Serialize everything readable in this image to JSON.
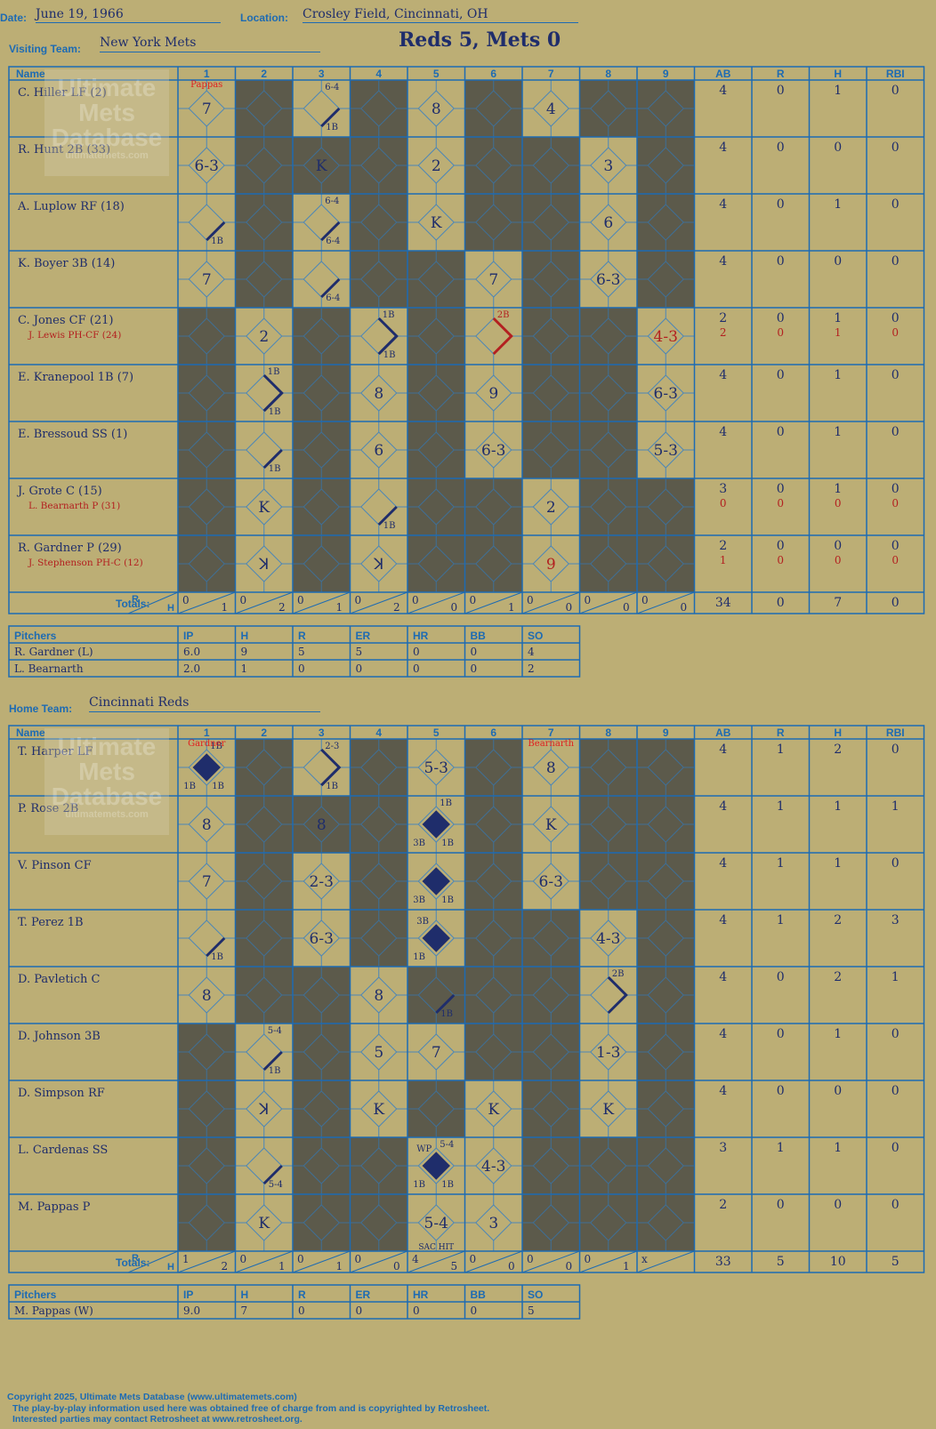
{
  "header": {
    "date_label": "Date:",
    "date": "June 19, 1966",
    "location_label": "Location:",
    "location": "Crosley Field, Cincinnati, OH",
    "visiting_label": "Visiting Team:",
    "visiting_team": "New York Mets",
    "result": "Reds 5, Mets 0",
    "home_label": "Home Team:",
    "home_team": "Cincinnati Reds"
  },
  "watermark": {
    "line1": "Ultimate",
    "line2": "Mets",
    "line3": "Database",
    "url": "ultimatemets.com"
  },
  "grid_headers": {
    "name": "Name",
    "innings": [
      "1",
      "2",
      "3",
      "4",
      "5",
      "6",
      "7",
      "8",
      "9"
    ],
    "stats": [
      "AB",
      "R",
      "H",
      "RBI"
    ],
    "totals": "Totals:",
    "r": "R",
    "h": "H"
  },
  "colors": {
    "background": "#bcae75",
    "dark_cell": "#5c5a4b",
    "grid_line": "#1d6bb3",
    "ink": "#1f2d6b",
    "red_ink": "#b32020"
  },
  "visitors": {
    "players": [
      {
        "name": "C. Hiller LF (2)",
        "sub": "",
        "ab": "4",
        "r": "0",
        "h": "1",
        "rbi": "0",
        "sub_ab": "",
        "sub_r": "",
        "sub_h": "",
        "sub_rbi": ""
      },
      {
        "name": "R. Hunt 2B (33)",
        "sub": "",
        "ab": "4",
        "r": "0",
        "h": "0",
        "rbi": "0",
        "sub_ab": "",
        "sub_r": "",
        "sub_h": "",
        "sub_rbi": ""
      },
      {
        "name": "A. Luplow RF (18)",
        "sub": "",
        "ab": "4",
        "r": "0",
        "h": "1",
        "rbi": "0",
        "sub_ab": "",
        "sub_r": "",
        "sub_h": "",
        "sub_rbi": ""
      },
      {
        "name": "K. Boyer 3B (14)",
        "sub": "",
        "ab": "4",
        "r": "0",
        "h": "0",
        "rbi": "0",
        "sub_ab": "",
        "sub_r": "",
        "sub_h": "",
        "sub_rbi": ""
      },
      {
        "name": "C. Jones CF (21)",
        "sub": "J. Lewis PH-CF (24)",
        "ab": "2",
        "r": "0",
        "h": "1",
        "rbi": "0",
        "sub_ab": "2",
        "sub_r": "0",
        "sub_h": "1",
        "sub_rbi": "0"
      },
      {
        "name": "E. Kranepool 1B (7)",
        "sub": "",
        "ab": "4",
        "r": "0",
        "h": "1",
        "rbi": "0",
        "sub_ab": "",
        "sub_r": "",
        "sub_h": "",
        "sub_rbi": ""
      },
      {
        "name": "E. Bressoud SS (1)",
        "sub": "",
        "ab": "4",
        "r": "0",
        "h": "1",
        "rbi": "0",
        "sub_ab": "",
        "sub_r": "",
        "sub_h": "",
        "sub_rbi": ""
      },
      {
        "name": "J. Grote C (15)",
        "sub": "L. Bearnarth P (31)",
        "ab": "3",
        "r": "0",
        "h": "1",
        "rbi": "0",
        "sub_ab": "0",
        "sub_r": "0",
        "sub_h": "0",
        "sub_rbi": "0"
      },
      {
        "name": "R. Gardner P (29)",
        "sub": "J. Stephenson PH-C (12)",
        "ab": "2",
        "r": "0",
        "h": "0",
        "rbi": "0",
        "sub_ab": "1",
        "sub_r": "0",
        "sub_h": "0",
        "sub_rbi": "0"
      }
    ],
    "dark_cells": [
      [
        0,
        1
      ],
      [
        0,
        3
      ],
      [
        0,
        5
      ],
      [
        0,
        7
      ],
      [
        0,
        8
      ],
      [
        1,
        1
      ],
      [
        1,
        2
      ],
      [
        1,
        3
      ],
      [
        1,
        5
      ],
      [
        1,
        6
      ],
      [
        1,
        8
      ],
      [
        2,
        1
      ],
      [
        2,
        3
      ],
      [
        2,
        5
      ],
      [
        2,
        6
      ],
      [
        2,
        8
      ],
      [
        3,
        1
      ],
      [
        3,
        3
      ],
      [
        3,
        4
      ],
      [
        3,
        6
      ],
      [
        3,
        8
      ],
      [
        4,
        0
      ],
      [
        4,
        2
      ],
      [
        4,
        4
      ],
      [
        4,
        6
      ],
      [
        4,
        7
      ],
      [
        5,
        0
      ],
      [
        5,
        2
      ],
      [
        5,
        4
      ],
      [
        5,
        6
      ],
      [
        5,
        7
      ],
      [
        6,
        0
      ],
      [
        6,
        2
      ],
      [
        6,
        4
      ],
      [
        6,
        6
      ],
      [
        6,
        7
      ],
      [
        7,
        0
      ],
      [
        7,
        2
      ],
      [
        7,
        4
      ],
      [
        7,
        5
      ],
      [
        7,
        7
      ],
      [
        7,
        8
      ],
      [
        8,
        0
      ],
      [
        8,
        2
      ],
      [
        8,
        4
      ],
      [
        8,
        5
      ],
      [
        8,
        7
      ],
      [
        8,
        8
      ]
    ],
    "plays": [
      {
        "r": 0,
        "i": 0,
        "t": "7"
      },
      {
        "r": 0,
        "i": 2,
        "t": "",
        "hit": "1B",
        "top": "6-4"
      },
      {
        "r": 0,
        "i": 4,
        "t": "8"
      },
      {
        "r": 0,
        "i": 6,
        "t": "4"
      },
      {
        "r": 1,
        "i": 0,
        "t": "6-3"
      },
      {
        "r": 1,
        "i": 2,
        "t": "K"
      },
      {
        "r": 1,
        "i": 4,
        "t": "2"
      },
      {
        "r": 1,
        "i": 7,
        "t": "3"
      },
      {
        "r": 2,
        "i": 0,
        "t": "",
        "hit": "1B"
      },
      {
        "r": 2,
        "i": 2,
        "t": "",
        "hit": "6-4",
        "top": "6-4"
      },
      {
        "r": 2,
        "i": 4,
        "t": "K"
      },
      {
        "r": 2,
        "i": 7,
        "t": "6"
      },
      {
        "r": 3,
        "i": 0,
        "t": "7"
      },
      {
        "r": 3,
        "i": 2,
        "t": "",
        "hit": "6-4"
      },
      {
        "r": 3,
        "i": 5,
        "t": "7"
      },
      {
        "r": 3,
        "i": 7,
        "t": "6-3"
      },
      {
        "r": 4,
        "i": 1,
        "t": "2"
      },
      {
        "r": 4,
        "i": 3,
        "t": "",
        "hit": "1B",
        "top": "1B",
        "adv": true
      },
      {
        "r": 4,
        "i": 5,
        "t": "",
        "top": "2B",
        "adv": true,
        "redpath": true
      },
      {
        "r": 4,
        "i": 8,
        "t": "4-3",
        "red": true
      },
      {
        "r": 5,
        "i": 1,
        "t": "",
        "hit": "1B",
        "top": "1B",
        "adv": true
      },
      {
        "r": 5,
        "i": 3,
        "t": "8"
      },
      {
        "r": 5,
        "i": 5,
        "t": "9"
      },
      {
        "r": 5,
        "i": 8,
        "t": "6-3"
      },
      {
        "r": 6,
        "i": 1,
        "t": "",
        "hit": "1B"
      },
      {
        "r": 6,
        "i": 3,
        "t": "6"
      },
      {
        "r": 6,
        "i": 5,
        "t": "6-3"
      },
      {
        "r": 6,
        "i": 8,
        "t": "5-3"
      },
      {
        "r": 7,
        "i": 1,
        "t": "K"
      },
      {
        "r": 7,
        "i": 3,
        "t": "",
        "hit": "1B"
      },
      {
        "r": 7,
        "i": 6,
        "t": "2"
      },
      {
        "r": 8,
        "i": 1,
        "t": "ꓘ"
      },
      {
        "r": 8,
        "i": 3,
        "t": "ꓘ"
      },
      {
        "r": 8,
        "i": 6,
        "t": "9",
        "red": true
      }
    ],
    "pitcher_change_notes": [
      {
        "r": 0,
        "i": 0,
        "t": "Pappas"
      }
    ],
    "totals": {
      "innings": [
        [
          "0",
          "1"
        ],
        [
          "0",
          "2"
        ],
        [
          "0",
          "1"
        ],
        [
          "0",
          "2"
        ],
        [
          "0",
          "0"
        ],
        [
          "0",
          "1"
        ],
        [
          "0",
          "0"
        ],
        [
          "0",
          "0"
        ],
        [
          "0",
          "0"
        ]
      ],
      "ab": "34",
      "r": "0",
      "h": "7",
      "rbi": "0"
    },
    "pitchers": {
      "header": [
        "Pitchers",
        "IP",
        "H",
        "R",
        "ER",
        "HR",
        "BB",
        "SO"
      ],
      "rows": [
        [
          "R. Gardner (L)",
          "6.0",
          "9",
          "5",
          "5",
          "0",
          "0",
          "4"
        ],
        [
          "L. Bearnarth",
          "2.0",
          "1",
          "0",
          "0",
          "0",
          "0",
          "2"
        ]
      ]
    }
  },
  "home": {
    "players": [
      {
        "name": "T. Harper LF",
        "ab": "4",
        "r": "1",
        "h": "2",
        "rbi": "0"
      },
      {
        "name": "P. Rose 2B",
        "ab": "4",
        "r": "1",
        "h": "1",
        "rbi": "1"
      },
      {
        "name": "V. Pinson CF",
        "ab": "4",
        "r": "1",
        "h": "1",
        "rbi": "0"
      },
      {
        "name": "T. Perez 1B",
        "ab": "4",
        "r": "1",
        "h": "2",
        "rbi": "3"
      },
      {
        "name": "D. Pavletich C",
        "ab": "4",
        "r": "0",
        "h": "2",
        "rbi": "1"
      },
      {
        "name": "D. Johnson 3B",
        "ab": "4",
        "r": "0",
        "h": "1",
        "rbi": "0"
      },
      {
        "name": "D. Simpson RF",
        "ab": "4",
        "r": "0",
        "h": "0",
        "rbi": "0"
      },
      {
        "name": "L. Cardenas SS",
        "ab": "3",
        "r": "1",
        "h": "1",
        "rbi": "0"
      },
      {
        "name": "M. Pappas P",
        "ab": "2",
        "r": "0",
        "h": "0",
        "rbi": "0"
      }
    ],
    "dark_cells": [
      [
        0,
        1
      ],
      [
        0,
        3
      ],
      [
        0,
        5
      ],
      [
        0,
        7
      ],
      [
        0,
        8
      ],
      [
        1,
        1
      ],
      [
        1,
        2
      ],
      [
        1,
        3
      ],
      [
        1,
        5
      ],
      [
        1,
        7
      ],
      [
        1,
        8
      ],
      [
        2,
        1
      ],
      [
        2,
        3
      ],
      [
        2,
        5
      ],
      [
        2,
        7
      ],
      [
        2,
        8
      ],
      [
        3,
        1
      ],
      [
        3,
        3
      ],
      [
        3,
        5
      ],
      [
        3,
        6
      ],
      [
        3,
        8
      ],
      [
        4,
        1
      ],
      [
        4,
        2
      ],
      [
        4,
        4
      ],
      [
        4,
        5
      ],
      [
        4,
        6
      ],
      [
        4,
        8
      ],
      [
        5,
        0
      ],
      [
        5,
        2
      ],
      [
        5,
        5
      ],
      [
        5,
        6
      ],
      [
        5,
        8
      ],
      [
        6,
        0
      ],
      [
        6,
        2
      ],
      [
        6,
        4
      ],
      [
        6,
        6
      ],
      [
        6,
        8
      ],
      [
        7,
        0
      ],
      [
        7,
        2
      ],
      [
        7,
        3
      ],
      [
        7,
        6
      ],
      [
        7,
        7
      ],
      [
        7,
        8
      ],
      [
        8,
        0
      ],
      [
        8,
        2
      ],
      [
        8,
        3
      ],
      [
        8,
        6
      ],
      [
        8,
        7
      ],
      [
        8,
        8
      ]
    ],
    "plays": [
      {
        "r": 0,
        "i": 0,
        "t": "",
        "run": true,
        "top": "1B",
        "bl": "1B",
        "br": "1B"
      },
      {
        "r": 0,
        "i": 2,
        "t": "",
        "hit": "1B",
        "top": "2-3",
        "adv": true
      },
      {
        "r": 0,
        "i": 4,
        "t": "5-3"
      },
      {
        "r": 0,
        "i": 6,
        "t": "8"
      },
      {
        "r": 1,
        "i": 0,
        "t": "8"
      },
      {
        "r": 1,
        "i": 2,
        "t": "8"
      },
      {
        "r": 1,
        "i": 4,
        "t": "",
        "run": true,
        "top": "1B",
        "bl": "3B",
        "br": "1B"
      },
      {
        "r": 1,
        "i": 6,
        "t": "K"
      },
      {
        "r": 2,
        "i": 0,
        "t": "7"
      },
      {
        "r": 2,
        "i": 2,
        "t": "2-3"
      },
      {
        "r": 2,
        "i": 4,
        "t": "",
        "run": true,
        "bl": "3B",
        "br": "1B"
      },
      {
        "r": 2,
        "i": 6,
        "t": "6-3"
      },
      {
        "r": 3,
        "i": 0,
        "t": "",
        "hit": "1B"
      },
      {
        "r": 3,
        "i": 2,
        "t": "6-3"
      },
      {
        "r": 3,
        "i": 4,
        "t": "",
        "run": true,
        "tl": "3B",
        "bl": "1B"
      },
      {
        "r": 3,
        "i": 7,
        "t": "4-3"
      },
      {
        "r": 4,
        "i": 0,
        "t": "8"
      },
      {
        "r": 4,
        "i": 3,
        "t": "8"
      },
      {
        "r": 4,
        "i": 4,
        "t": "",
        "hit": "1B"
      },
      {
        "r": 4,
        "i": 7,
        "t": "",
        "top": "2B",
        "adv": true
      },
      {
        "r": 5,
        "i": 1,
        "t": "",
        "hit": "1B",
        "top": "5-4"
      },
      {
        "r": 5,
        "i": 3,
        "t": "5"
      },
      {
        "r": 5,
        "i": 4,
        "t": "7"
      },
      {
        "r": 5,
        "i": 7,
        "t": "1-3"
      },
      {
        "r": 6,
        "i": 1,
        "t": "ꓘ"
      },
      {
        "r": 6,
        "i": 3,
        "t": "K"
      },
      {
        "r": 6,
        "i": 5,
        "t": "K"
      },
      {
        "r": 6,
        "i": 7,
        "t": "K"
      },
      {
        "r": 7,
        "i": 1,
        "t": "",
        "hit": "5-4"
      },
      {
        "r": 7,
        "i": 4,
        "t": "",
        "run": true,
        "tl": "WP",
        "top": "5-4",
        "bl": "1B",
        "br": "1B"
      },
      {
        "r": 7,
        "i": 5,
        "t": "4-3"
      },
      {
        "r": 8,
        "i": 1,
        "t": "K"
      },
      {
        "r": 8,
        "i": 4,
        "t": "5-4",
        "note": "SAC HIT"
      },
      {
        "r": 8,
        "i": 5,
        "t": "3"
      }
    ],
    "pitcher_change_notes": [
      {
        "r": 0,
        "i": 0,
        "t": "Gardner"
      },
      {
        "r": 0,
        "i": 6,
        "t": "Bearnarth"
      }
    ],
    "totals": {
      "innings": [
        [
          "1",
          "2"
        ],
        [
          "0",
          "1"
        ],
        [
          "0",
          "1"
        ],
        [
          "0",
          "0"
        ],
        [
          "4",
          "5"
        ],
        [
          "0",
          "0"
        ],
        [
          "0",
          "0"
        ],
        [
          "0",
          "1"
        ],
        [
          "x",
          ""
        ]
      ],
      "ab": "33",
      "r": "5",
      "h": "10",
      "rbi": "5"
    },
    "pitchers": {
      "header": [
        "Pitchers",
        "IP",
        "H",
        "R",
        "ER",
        "HR",
        "BB",
        "SO"
      ],
      "rows": [
        [
          "M. Pappas (W)",
          "9.0",
          "7",
          "0",
          "0",
          "0",
          "0",
          "5"
        ]
      ]
    }
  },
  "footer": {
    "line1": "Copyright 2025, Ultimate Mets Database (www.ultimatemets.com)",
    "line2": "The play-by-play information used here was obtained free of charge from and is copyrighted by Retrosheet.",
    "line3": "Interested parties may contact Retrosheet at www.retrosheet.org."
  }
}
